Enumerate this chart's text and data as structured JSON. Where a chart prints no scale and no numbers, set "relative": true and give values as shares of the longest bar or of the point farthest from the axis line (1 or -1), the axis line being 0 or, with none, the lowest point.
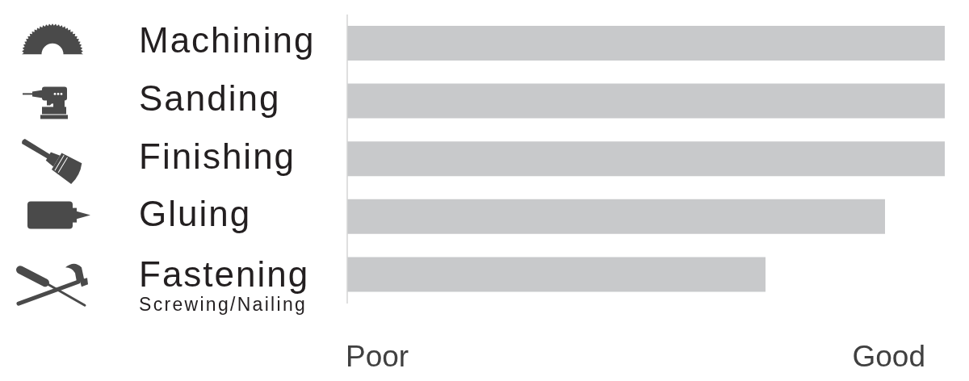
{
  "chart_data": {
    "type": "bar",
    "orientation": "horizontal",
    "relative": true,
    "categories": [
      "Machining",
      "Sanding",
      "Finishing",
      "Gluing",
      "Fastening\nScrewing/Nailing"
    ],
    "values": [
      1,
      1,
      1,
      0.9,
      0.7
    ],
    "color": "#c8c9cb",
    "annotations": [
      "Poor",
      "Good"
    ]
  }
}
